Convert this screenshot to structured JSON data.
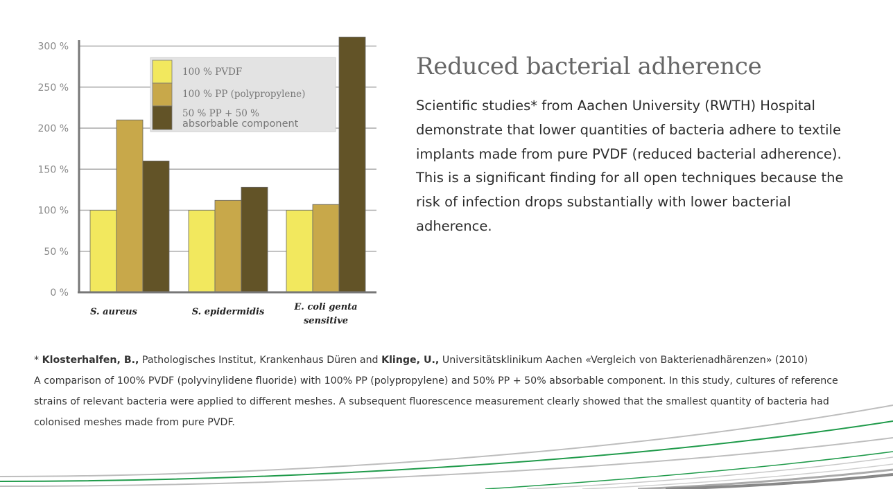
{
  "chart_data": {
    "type": "bar",
    "categories": [
      "S. aureus",
      "S. epidermidis",
      "E. coli genta sensitive"
    ],
    "series": [
      {
        "name": "100 % PVDF",
        "color": "#f2e85e",
        "values": [
          100,
          100,
          100
        ]
      },
      {
        "name": "100 % PP (polypropylene)",
        "color": "#c8a84a",
        "values": [
          210,
          112,
          107
        ]
      },
      {
        "name": "50 % PP + 50 % absorbable component",
        "color": "#625327",
        "values": [
          160,
          128,
          311
        ]
      }
    ],
    "yticks": [
      "0 %",
      "50 %",
      "100 %",
      "150 %",
      "200 %",
      "250 %",
      "300 %"
    ],
    "ylim": [
      0,
      300
    ],
    "grid": true,
    "legend_position": "top-left"
  },
  "legend": {
    "pvdf": "100 % PVDF",
    "pp": "100 % PP (polypropylene)",
    "mix_line1": "50 % PP + 50 %",
    "mix_line2": "absorbable component"
  },
  "category_labels": {
    "cat1": "S. aureus",
    "cat2": "S. epidermidis",
    "cat3_line1": "E. coli genta",
    "cat3_line2": "sensitive"
  },
  "article": {
    "heading": "Reduced bacterial adherence",
    "body": "Scientific studies* from Aachen University (RWTH) Hospital demonstrate that lower quantities of bacteria adhere to textile implants made from pure PVDF (reduced bacterial adherence). This is a significant finding for all open techniques because the risk of infection drops substantially with lower bacterial adherence."
  },
  "footnote": {
    "marker": "* ",
    "author1": "Klosterhalfen, B.,",
    "affiliation1": " Pathologisches Institut, Krankenhaus Düren and ",
    "author2": "Klinge, U.,",
    "affiliation2": " Universitätsklinikum Aachen «Vergleich von Bakterienadhärenzen» (2010)",
    "description": "A comparison of 100% PVDF (polyvinylidene fluoride) with 100% PP (polypropylene) and 50% PP + 50% absorbable component. In this study, cultures of reference strains of relevant bacteria were applied to different meshes. A subsequent fluorescence measurement clearly showed that the smallest quantity of bacteria had colonised meshes made from pure PVDF."
  }
}
